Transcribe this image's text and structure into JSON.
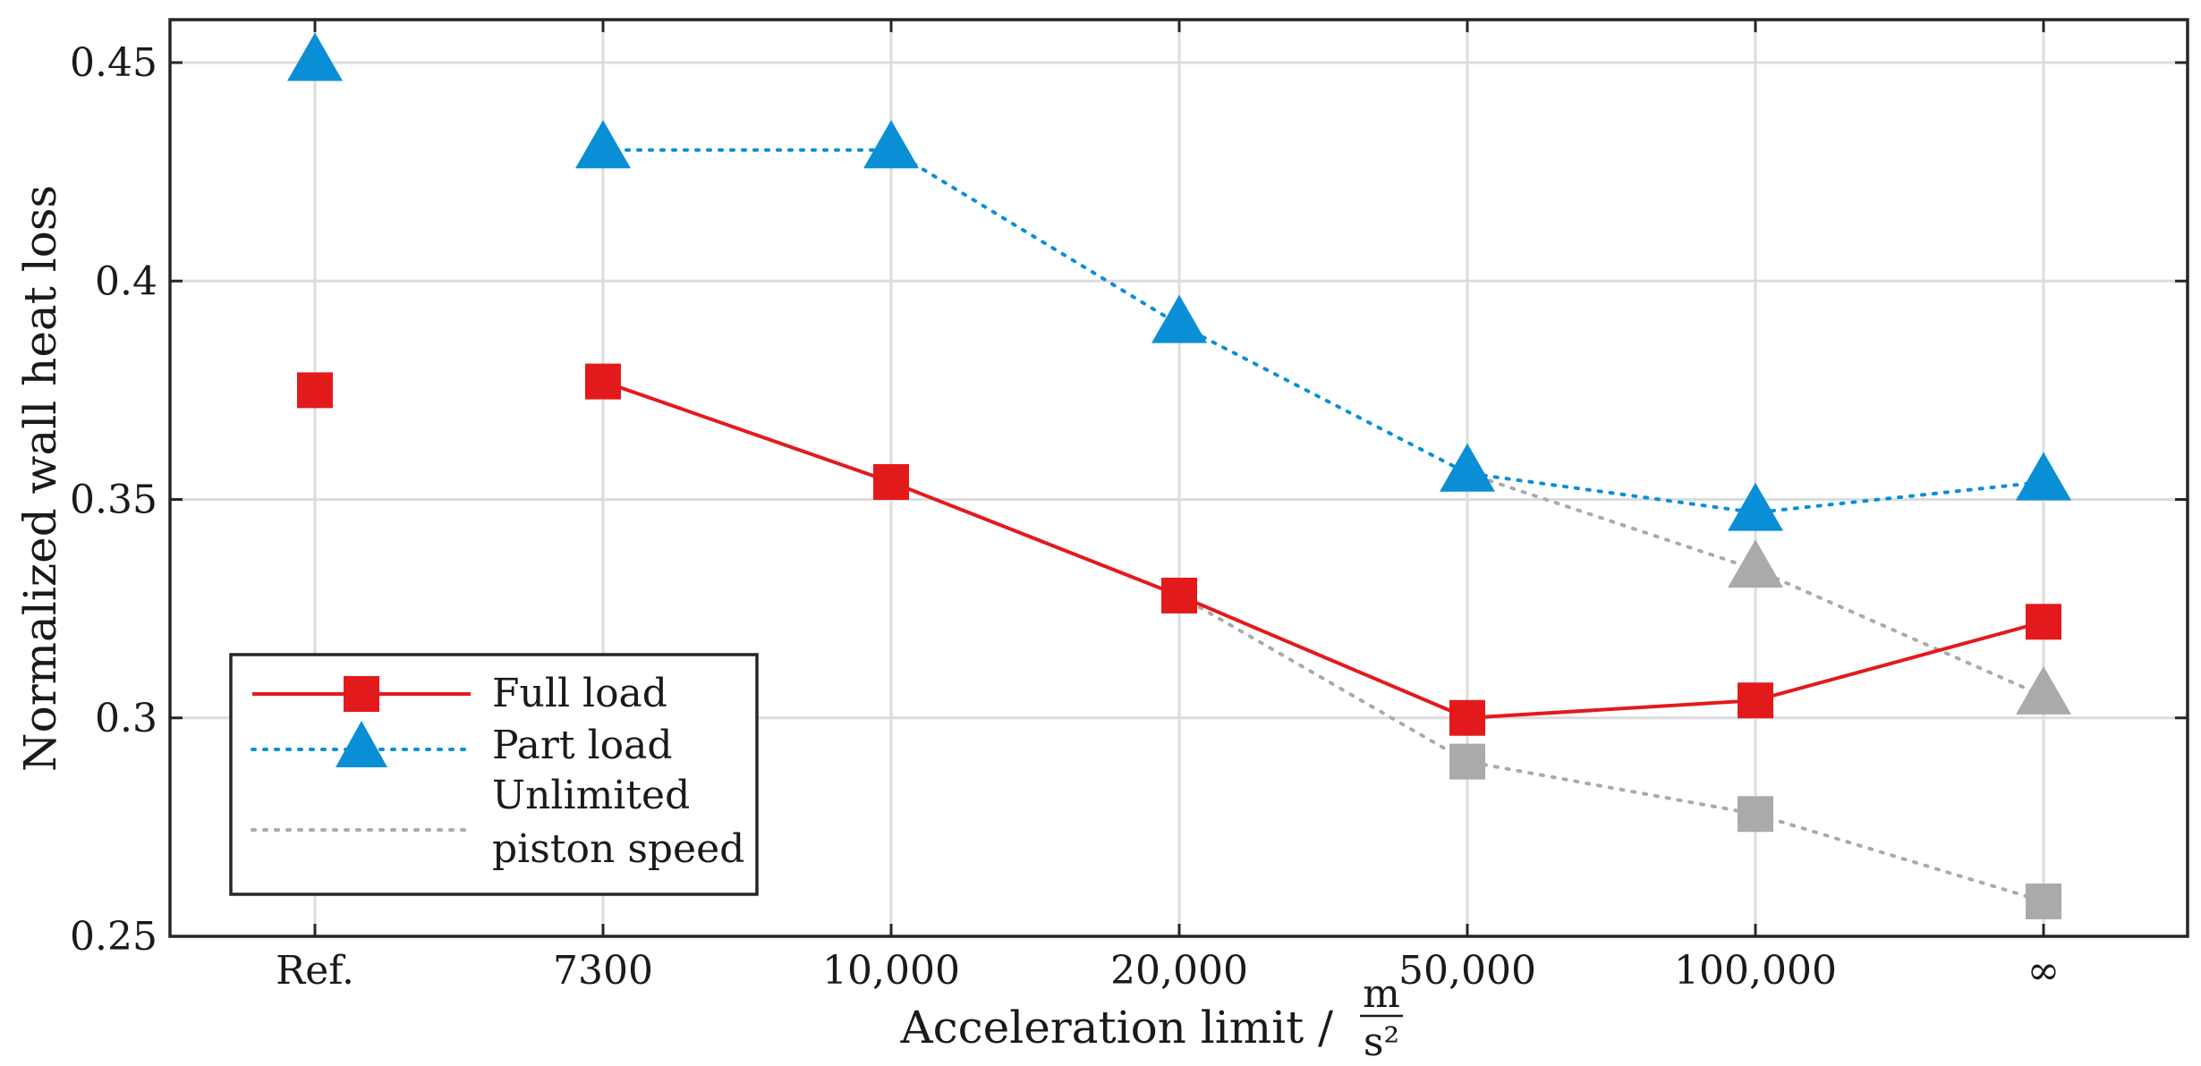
{
  "chart_data": {
    "type": "line",
    "title": "",
    "categories": [
      "Ref.",
      "7300",
      "10,000",
      "20,000",
      "50,000",
      "100,000",
      "∞"
    ],
    "xlabel": "Acceleration limit /",
    "xlabel_unit_num": "m",
    "xlabel_unit_den": "s²",
    "ylabel": "Normalized wall heat loss",
    "ylim": [
      0.25,
      0.46
    ],
    "yticks": [
      0.25,
      0.3,
      0.35,
      0.4,
      0.45
    ],
    "ytick_labels": [
      "0.25",
      "0.3",
      "0.35",
      "0.4",
      "0.45"
    ],
    "grid": true,
    "legend_position": "bottom-left",
    "series": [
      {
        "name": "Full load",
        "color": "#e31a1c",
        "marker": "square",
        "line_style": "solid",
        "values": [
          0.375,
          0.377,
          0.354,
          0.328,
          0.3,
          0.304,
          0.322
        ],
        "connect_from_index": 1
      },
      {
        "name": "Part load",
        "color": "#0a8fd6",
        "marker": "triangle",
        "line_style": "dotted",
        "values": [
          0.45,
          0.43,
          0.43,
          0.39,
          0.356,
          0.347,
          0.354
        ],
        "connect_from_index": 1
      },
      {
        "name": "Unlimited piston speed",
        "legend_lines": [
          "Unlimited",
          "piston speed"
        ],
        "color": "#aaaaaa",
        "line_style": "dotted",
        "branches": [
          {
            "marker": "square",
            "categories": [
              "20,000",
              "50,000",
              "100,000",
              "∞"
            ],
            "values": [
              0.328,
              0.29,
              0.278,
              0.258
            ]
          },
          {
            "marker": "triangle",
            "categories": [
              "50,000",
              "100,000",
              "∞"
            ],
            "values": [
              0.356,
              0.334,
              0.305
            ]
          }
        ]
      }
    ]
  }
}
